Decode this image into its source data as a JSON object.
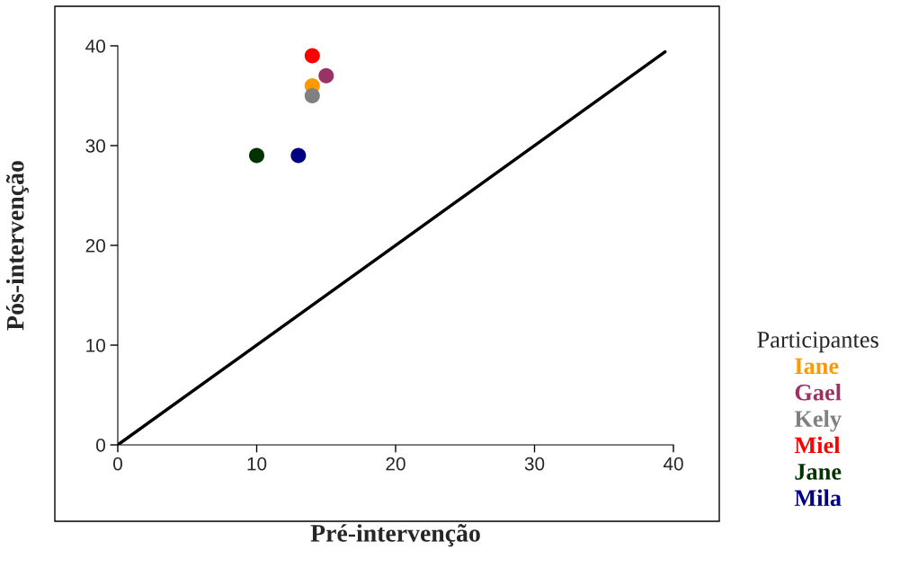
{
  "chart_data": {
    "type": "scatter",
    "xlabel": "Pré-intervenção",
    "ylabel": "Pós-intervenção",
    "legend_title": "Participantes",
    "xlim": [
      0,
      40
    ],
    "ylim": [
      0,
      40
    ],
    "xticks": [
      0,
      10,
      20,
      30,
      40
    ],
    "yticks": [
      0,
      10,
      20,
      30,
      40
    ],
    "grid": false,
    "legend": "right",
    "marker": "circle",
    "series": [
      {
        "type": "line",
        "color": "#000000",
        "x": [
          0,
          39.4
        ],
        "values": [
          0,
          39.4
        ],
        "marker": "none",
        "line_style": "solid"
      },
      {
        "name": "Iane",
        "color": "#ff9900",
        "x": [
          14
        ],
        "values": [
          36
        ]
      },
      {
        "name": "Gael",
        "color": "#993366",
        "x": [
          15
        ],
        "values": [
          37
        ]
      },
      {
        "name": "Kely",
        "color": "#808080",
        "x": [
          14
        ],
        "values": [
          35
        ]
      },
      {
        "name": "Miel",
        "color": "#ff0000",
        "x": [
          14
        ],
        "values": [
          39
        ]
      },
      {
        "name": "Jane",
        "color": "#003300",
        "x": [
          10
        ],
        "values": [
          29
        ]
      },
      {
        "name": "Mila",
        "color": "#000080",
        "x": [
          13
        ],
        "values": [
          29
        ]
      }
    ]
  }
}
